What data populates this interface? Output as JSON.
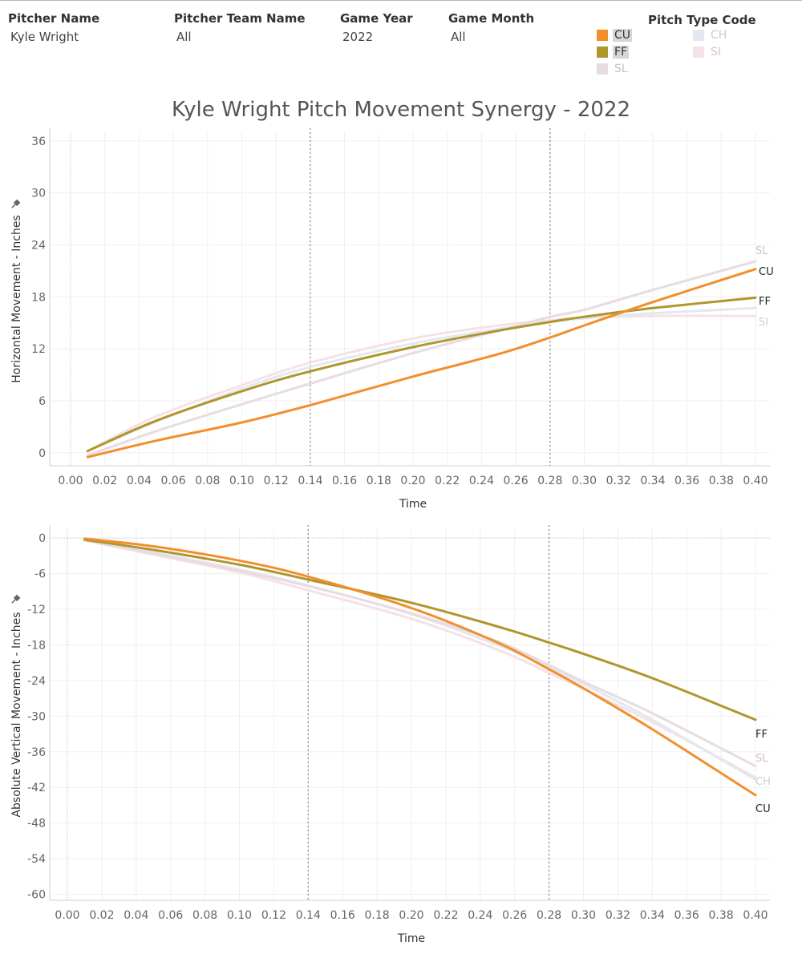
{
  "filters": [
    {
      "title": "Pitcher Name",
      "value": "Kyle Wright"
    },
    {
      "title": "Pitcher Team Name",
      "value": "All"
    },
    {
      "title": "Game Year",
      "value": "2022"
    },
    {
      "title": "Game Month",
      "value": "All"
    }
  ],
  "legend": {
    "title": "Pitch Type Code",
    "items": [
      {
        "code": "CU",
        "color": "#f28e2b",
        "active": true
      },
      {
        "code": "CH",
        "color": "#e3e8f0",
        "active": false
      },
      {
        "code": "FF",
        "color": "#b0962d",
        "active": true
      },
      {
        "code": "SI",
        "color": "#f5e1e6",
        "active": false
      },
      {
        "code": "SL",
        "color": "#e8dbe2",
        "active": false
      }
    ]
  },
  "title": "Kyle Wright Pitch Movement Synergy - 2022",
  "chart_data": [
    {
      "type": "line",
      "ylabel": "Horizontal Movement - Inches",
      "xlabel": "Time",
      "xlim": [
        0,
        0.4
      ],
      "ylim": [
        -1.5,
        37
      ],
      "x_ticks": [
        "0.00",
        "0.02",
        "0.04",
        "0.06",
        "0.08",
        "0.10",
        "0.12",
        "0.14",
        "0.16",
        "0.18",
        "0.20",
        "0.22",
        "0.24",
        "0.26",
        "0.28",
        "0.30",
        "0.32",
        "0.34",
        "0.36",
        "0.38",
        "0.40"
      ],
      "y_ticks": [
        0,
        6,
        12,
        18,
        24,
        30,
        36
      ],
      "ref_lines_x": [
        0.14,
        0.28
      ],
      "x": [
        0.01,
        0.05,
        0.1,
        0.14,
        0.2,
        0.25,
        0.28,
        0.3,
        0.34,
        0.4
      ],
      "series": [
        {
          "name": "SI",
          "color": "#f5e1e6",
          "values": [
            0.2,
            4.2,
            7.8,
            10.4,
            13.2,
            14.7,
            15.3,
            15.6,
            15.8,
            15.8
          ]
        },
        {
          "name": "CH",
          "color": "#e3e8f0",
          "values": [
            0.2,
            3.6,
            7.4,
            9.9,
            12.6,
            14.3,
            15.1,
            15.5,
            16.1,
            16.7
          ]
        },
        {
          "name": "SL",
          "color": "#e8dbe2",
          "values": [
            -0.3,
            2.5,
            5.6,
            8.0,
            11.5,
            14.1,
            15.7,
            16.5,
            18.8,
            22.1
          ]
        },
        {
          "name": "FF",
          "color": "#b0962d",
          "values": [
            0.2,
            3.7,
            7.1,
            9.4,
            12.2,
            14.1,
            15.1,
            15.7,
            16.7,
            17.9
          ]
        },
        {
          "name": "CU",
          "color": "#f28e2b",
          "values": [
            -0.5,
            1.4,
            3.5,
            5.5,
            8.8,
            11.4,
            13.3,
            14.7,
            17.4,
            21.2
          ]
        }
      ]
    },
    {
      "type": "line",
      "ylabel": "Absolute Vertical Movement - Inches",
      "xlabel": "Time",
      "xlim": [
        0,
        0.4
      ],
      "ylim": [
        -61,
        1.5
      ],
      "x_ticks": [
        "0.00",
        "0.02",
        "0.04",
        "0.06",
        "0.08",
        "0.10",
        "0.12",
        "0.14",
        "0.16",
        "0.18",
        "0.20",
        "0.22",
        "0.24",
        "0.26",
        "0.28",
        "0.30",
        "0.32",
        "0.34",
        "0.36",
        "0.38",
        "0.40"
      ],
      "y_ticks": [
        0,
        -6,
        -12,
        -18,
        -24,
        -30,
        -36,
        -42,
        -48,
        -54,
        -60
      ],
      "ref_lines_x": [
        0.14,
        0.28
      ],
      "x": [
        0.01,
        0.05,
        0.1,
        0.14,
        0.2,
        0.25,
        0.28,
        0.3,
        0.34,
        0.4
      ],
      "series": [
        {
          "name": "SI",
          "color": "#f5e1e6",
          "values": [
            -0.4,
            -2.8,
            -5.8,
            -8.8,
            -13.6,
            -18.8,
            -22.7,
            -25.4,
            -31.0,
            -40.3
          ]
        },
        {
          "name": "CH",
          "color": "#e3e8f0",
          "values": [
            -0.3,
            -2.4,
            -5.3,
            -8.0,
            -12.8,
            -18.0,
            -21.8,
            -24.6,
            -30.6,
            -40.7
          ]
        },
        {
          "name": "SL",
          "color": "#e8dbe2",
          "values": [
            -0.4,
            -2.6,
            -5.5,
            -8.1,
            -12.7,
            -17.4,
            -21.4,
            -24.2,
            -29.5,
            -38.4
          ]
        },
        {
          "name": "FF",
          "color": "#b0962d",
          "values": [
            -0.3,
            -2.0,
            -4.5,
            -7.0,
            -10.9,
            -14.9,
            -17.6,
            -19.5,
            -23.6,
            -30.6
          ]
        },
        {
          "name": "CU",
          "color": "#f28e2b",
          "values": [
            -0.1,
            -1.4,
            -3.8,
            -6.5,
            -11.8,
            -17.6,
            -22.1,
            -25.3,
            -32.2,
            -43.3
          ]
        }
      ]
    }
  ]
}
